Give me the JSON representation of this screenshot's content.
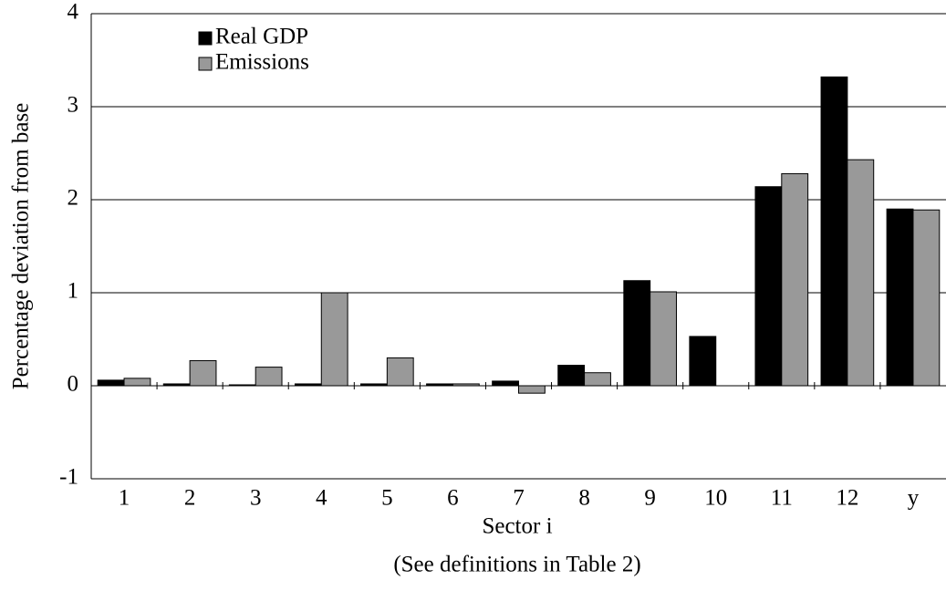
{
  "chart_data": {
    "type": "bar",
    "categories": [
      "1",
      "2",
      "3",
      "4",
      "5",
      "6",
      "7",
      "8",
      "9",
      "10",
      "11",
      "12",
      "y"
    ],
    "series": [
      {
        "name": "Real GDP",
        "color": "#000000",
        "values": [
          0.06,
          0.02,
          0.01,
          0.02,
          0.02,
          0.02,
          0.05,
          0.22,
          1.13,
          0.53,
          2.14,
          3.32,
          1.9
        ]
      },
      {
        "name": "Emissions",
        "color": "#999999",
        "values": [
          0.08,
          0.27,
          0.2,
          1.0,
          0.3,
          0.02,
          -0.08,
          0.14,
          1.01,
          0,
          2.28,
          2.43,
          1.89
        ]
      }
    ],
    "ylim": [
      -1,
      4
    ],
    "yticks": [
      -1,
      0,
      1,
      2,
      3,
      4
    ],
    "y_label": "Percentage deviation from base",
    "x_label": "Sector i",
    "note": "(See definitions in Table 2)",
    "grid": true,
    "legend": "upper left"
  }
}
